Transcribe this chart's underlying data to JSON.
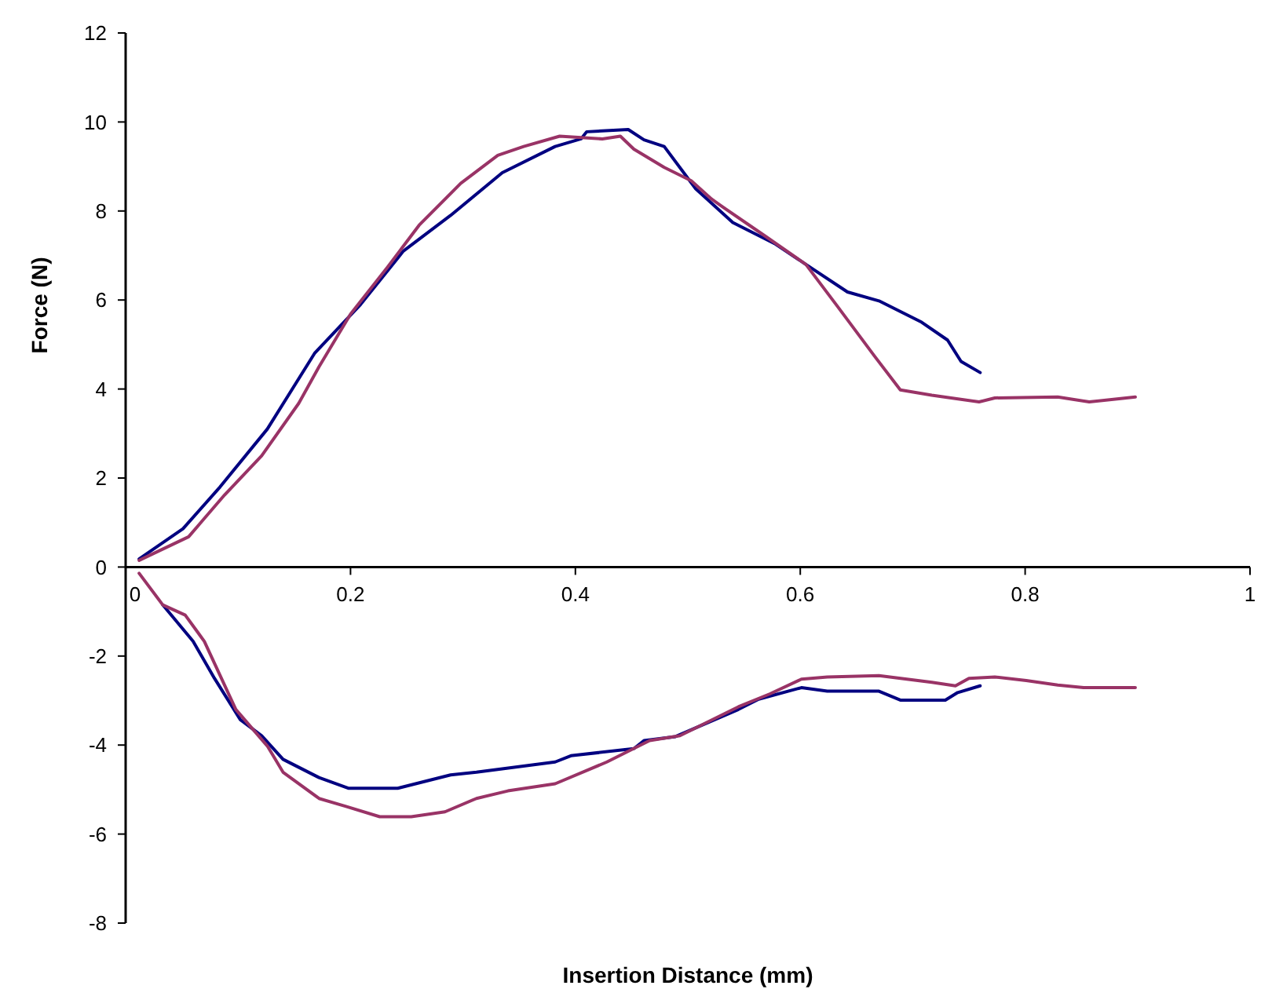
{
  "chart_data": {
    "type": "line",
    "xlabel": "Insertion Distance (mm)",
    "ylabel": "Force (N)",
    "xlim": [
      0,
      1
    ],
    "xticks": [
      0,
      0.2,
      0.4,
      0.6,
      0.8,
      1
    ],
    "ylim": [
      -8,
      12
    ],
    "yticks": [
      -8,
      -6,
      -4,
      -2,
      0,
      2,
      4,
      6,
      8,
      10,
      12
    ],
    "grid": false,
    "marker": "none",
    "line_style": "solid",
    "series": [
      {
        "color": "#000080",
        "x": [
          0.012,
          0.051,
          0.084,
          0.126,
          0.168,
          0.209,
          0.247,
          0.289,
          0.335,
          0.382,
          0.405,
          0.41,
          0.447,
          0.461,
          0.479,
          0.507,
          0.54,
          0.577,
          0.605,
          0.642,
          0.67,
          0.708,
          0.731,
          0.743,
          0.76
        ],
        "values": [
          0.18,
          0.86,
          1.8,
          3.1,
          4.8,
          5.9,
          7.1,
          7.9,
          8.86,
          9.45,
          9.62,
          9.78,
          9.83,
          9.6,
          9.45,
          8.5,
          7.74,
          7.27,
          6.8,
          6.18,
          5.98,
          5.5,
          5.1,
          4.62,
          4.37
        ]
      },
      {
        "color": "#993366",
        "x": [
          0.012,
          0.056,
          0.088,
          0.121,
          0.154,
          0.172,
          0.2,
          0.233,
          0.261,
          0.298,
          0.331,
          0.354,
          0.386,
          0.424,
          0.44,
          0.452,
          0.479,
          0.503,
          0.521,
          0.531,
          0.568,
          0.605,
          0.633,
          0.666,
          0.689,
          0.717,
          0.759,
          0.773,
          0.829,
          0.857,
          0.898
        ],
        "values": [
          0.15,
          0.68,
          1.62,
          2.5,
          3.68,
          4.5,
          5.68,
          6.74,
          7.68,
          8.62,
          9.25,
          9.45,
          9.68,
          9.62,
          9.68,
          9.39,
          8.98,
          8.68,
          8.27,
          8.09,
          7.45,
          6.8,
          5.86,
          4.74,
          3.98,
          3.86,
          3.71,
          3.8,
          3.82,
          3.71,
          3.82
        ]
      },
      {
        "color": "#000080",
        "x": [
          0.033,
          0.06,
          0.079,
          0.102,
          0.121,
          0.14,
          0.172,
          0.198,
          0.242,
          0.289,
          0.312,
          0.382,
          0.396,
          0.452,
          0.461,
          0.489,
          0.545,
          0.563,
          0.601,
          0.624,
          0.67,
          0.689,
          0.729,
          0.74,
          0.76
        ],
        "values": [
          -0.85,
          -1.67,
          -2.5,
          -3.43,
          -3.79,
          -4.32,
          -4.73,
          -4.97,
          -4.97,
          -4.67,
          -4.61,
          -4.38,
          -4.24,
          -4.08,
          -3.9,
          -3.81,
          -3.2,
          -2.97,
          -2.71,
          -2.79,
          -2.79,
          -2.99,
          -2.99,
          -2.82,
          -2.67
        ]
      },
      {
        "color": "#993366",
        "x": [
          0.012,
          0.033,
          0.053,
          0.07,
          0.098,
          0.126,
          0.14,
          0.172,
          0.196,
          0.226,
          0.254,
          0.284,
          0.312,
          0.34,
          0.382,
          0.428,
          0.466,
          0.493,
          0.545,
          0.573,
          0.601,
          0.624,
          0.67,
          0.717,
          0.738,
          0.75,
          0.773,
          0.801,
          0.829,
          0.852,
          0.898
        ],
        "values": [
          -0.14,
          -0.85,
          -1.08,
          -1.67,
          -3.2,
          -4.02,
          -4.61,
          -5.2,
          -5.38,
          -5.61,
          -5.61,
          -5.5,
          -5.2,
          -5.03,
          -4.87,
          -4.38,
          -3.9,
          -3.79,
          -3.14,
          -2.85,
          -2.52,
          -2.47,
          -2.44,
          -2.59,
          -2.67,
          -2.5,
          -2.47,
          -2.55,
          -2.65,
          -2.71,
          -2.71
        ]
      }
    ]
  }
}
